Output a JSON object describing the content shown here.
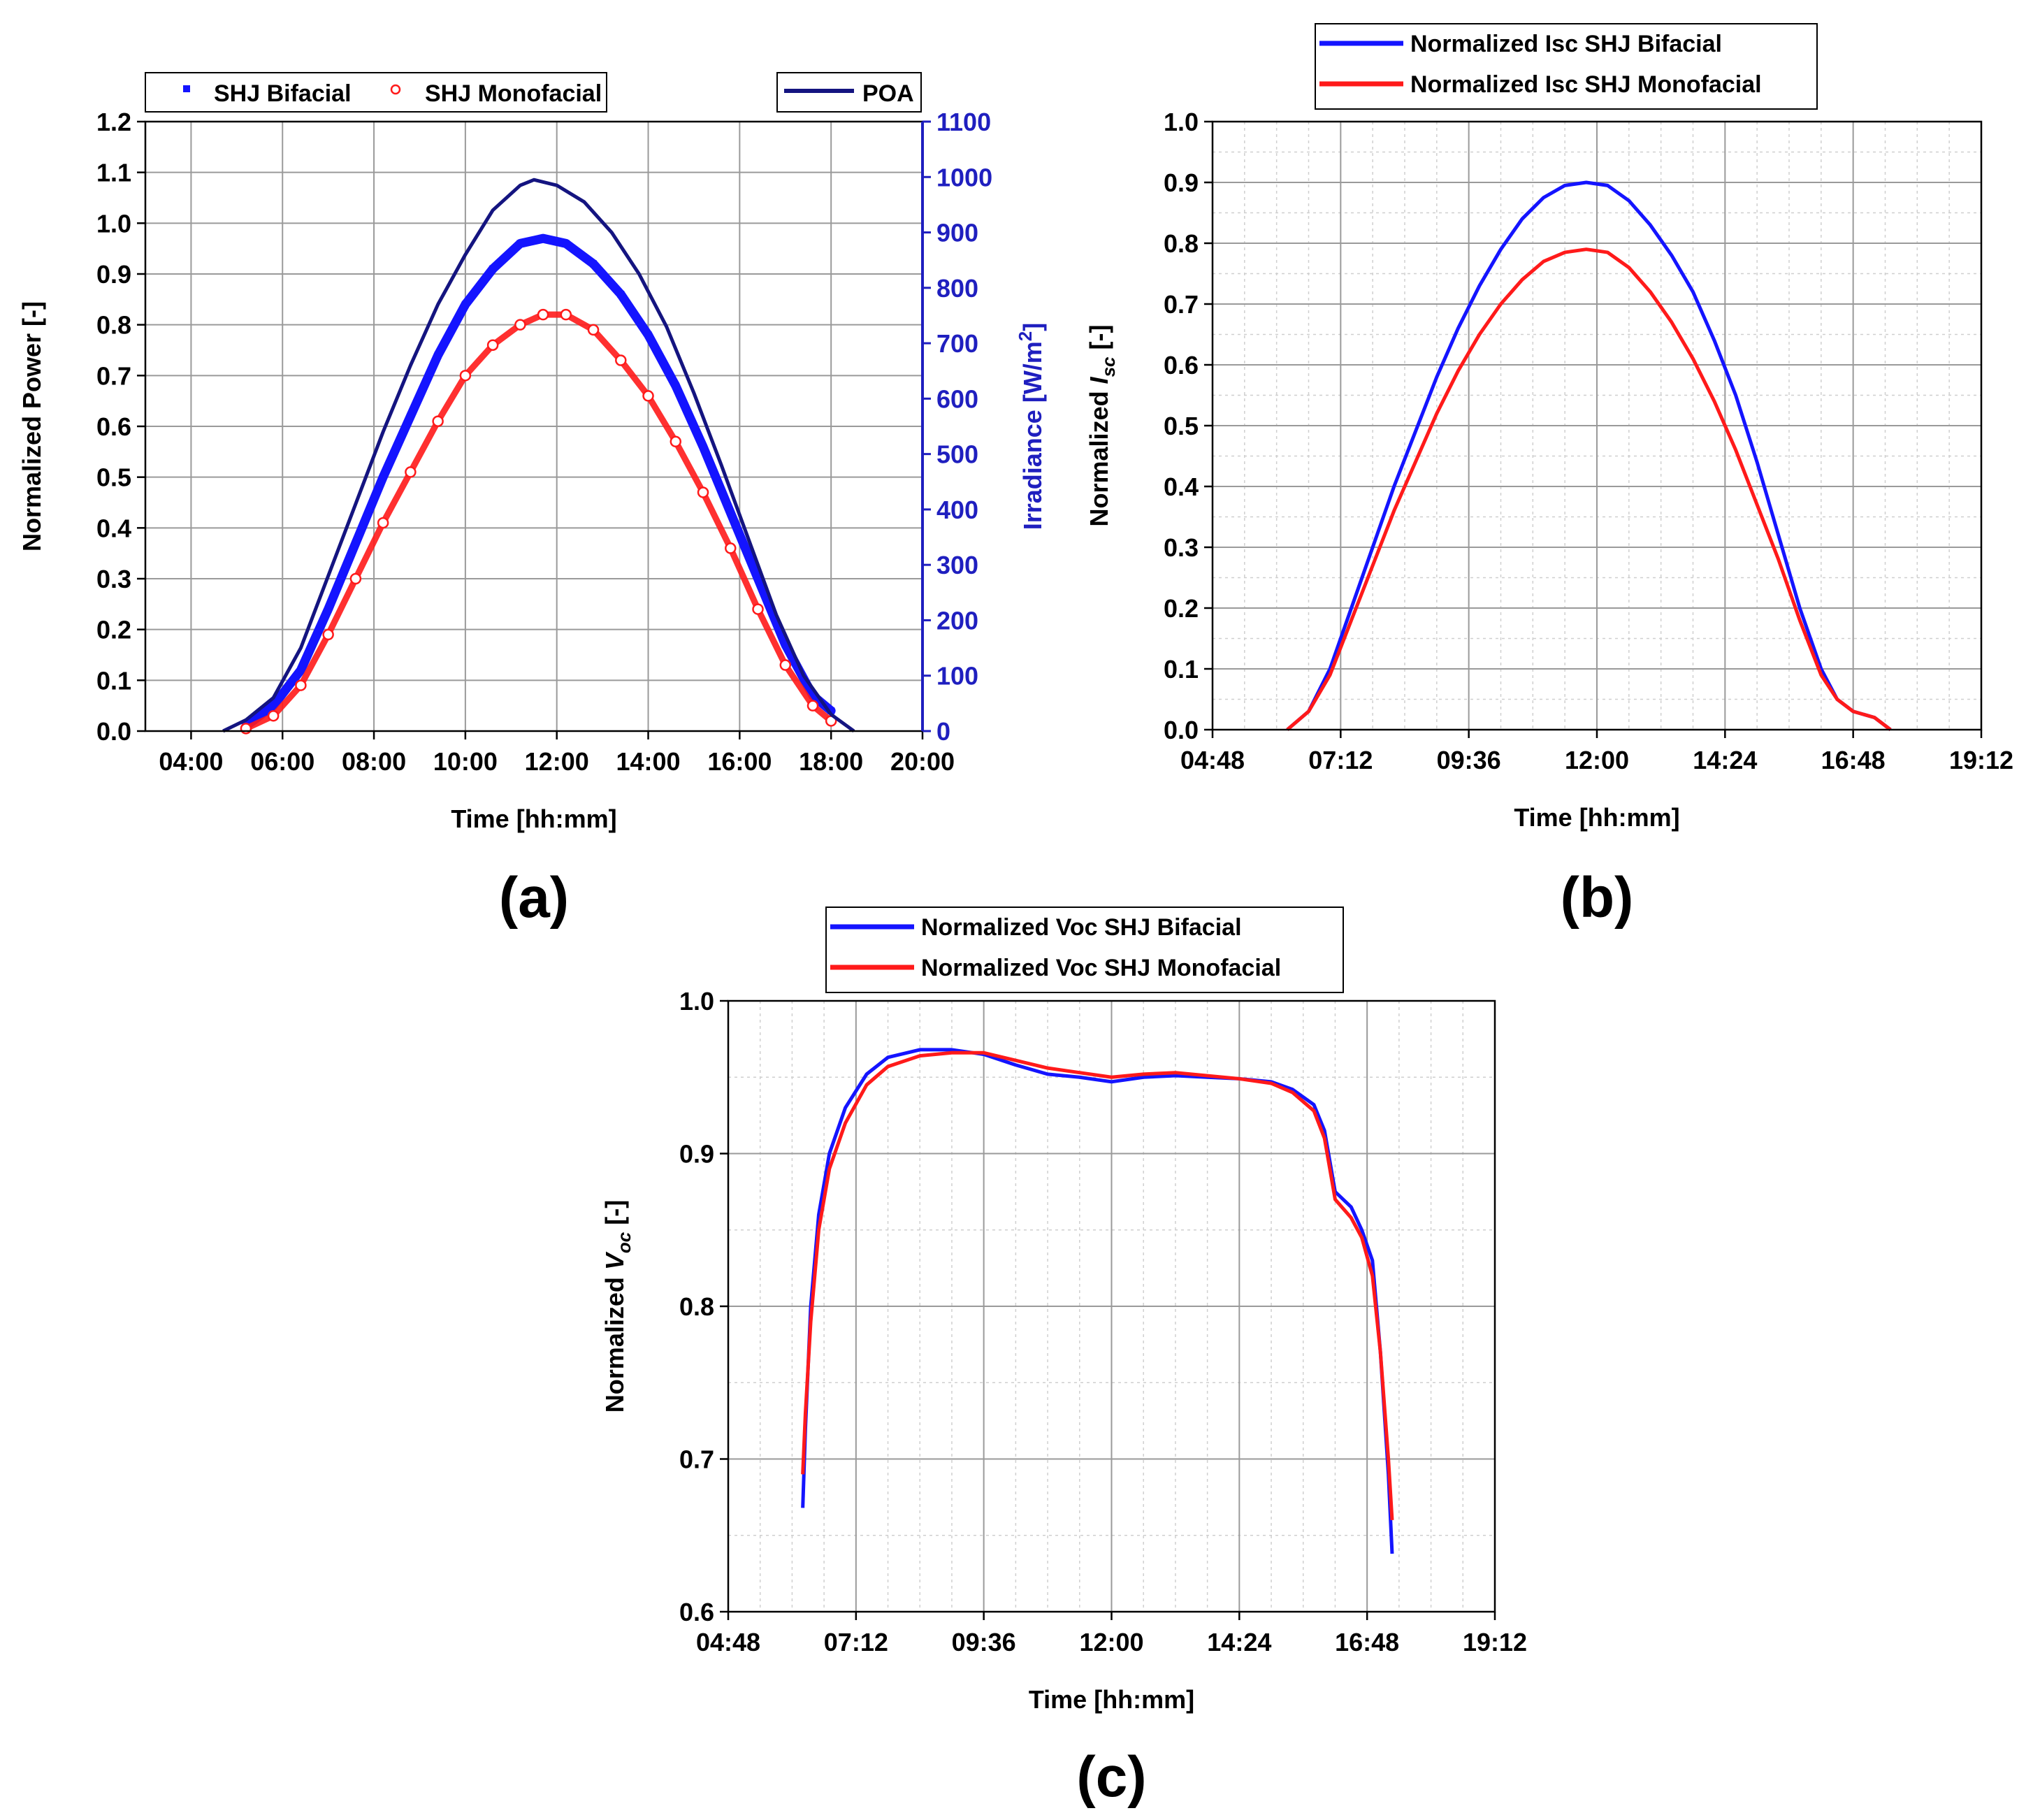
{
  "colors": {
    "blue": "#1414ff",
    "red": "#ff1a1a",
    "navy": "#141480",
    "axis_blue": "#1f1fbf"
  },
  "chart_data": [
    {
      "id": "a",
      "type": "scatter",
      "panel_label": "(a)",
      "xlabel": "Time [hh:mm]",
      "ylabel": "Normalized Power [-]",
      "y2label": "Irradiance [W/m2]",
      "x_tick_labels": [
        "04:00",
        "06:00",
        "08:00",
        "10:00",
        "12:00",
        "14:00",
        "16:00",
        "18:00",
        "20:00"
      ],
      "xlim_hours": [
        3,
        20
      ],
      "x_tick_hours": [
        4,
        6,
        8,
        10,
        12,
        14,
        16,
        18,
        20
      ],
      "ylim": [
        0,
        1.2
      ],
      "y_ticks": [
        "0.0",
        "0.1",
        "0.2",
        "0.3",
        "0.4",
        "0.5",
        "0.6",
        "0.7",
        "0.8",
        "0.9",
        "1.0",
        "1.1",
        "1.2"
      ],
      "y2lim": [
        0,
        1100
      ],
      "y2_ticks": [
        "0",
        "100",
        "200",
        "300",
        "400",
        "500",
        "600",
        "700",
        "800",
        "900",
        "1000",
        "1100"
      ],
      "legend": [
        {
          "name": "SHJ Bifacial"
        },
        {
          "name": "SHJ Monofacial"
        }
      ],
      "legend2": [
        {
          "name": "POA"
        }
      ],
      "series": [
        {
          "name": "SHJ Bifacial",
          "axis": "left",
          "color": "blue",
          "marker": "square",
          "x": [
            5.2,
            5.8,
            6.4,
            7.0,
            7.6,
            8.2,
            8.8,
            9.4,
            10.0,
            10.6,
            11.2,
            11.7,
            12.2,
            12.8,
            13.4,
            14.0,
            14.6,
            15.2,
            15.8,
            16.4,
            17.0,
            17.6,
            18.0
          ],
          "values": [
            0.01,
            0.05,
            0.12,
            0.24,
            0.37,
            0.5,
            0.62,
            0.74,
            0.84,
            0.91,
            0.96,
            0.97,
            0.96,
            0.92,
            0.86,
            0.78,
            0.68,
            0.56,
            0.43,
            0.3,
            0.17,
            0.07,
            0.04
          ]
        },
        {
          "name": "SHJ Monofacial",
          "axis": "left",
          "color": "red",
          "marker": "circle",
          "x": [
            5.2,
            5.8,
            6.4,
            7.0,
            7.6,
            8.2,
            8.8,
            9.4,
            10.0,
            10.6,
            11.2,
            11.7,
            12.2,
            12.8,
            13.4,
            14.0,
            14.6,
            15.2,
            15.8,
            16.4,
            17.0,
            17.6,
            18.0
          ],
          "values": [
            0.005,
            0.03,
            0.09,
            0.19,
            0.3,
            0.41,
            0.51,
            0.61,
            0.7,
            0.76,
            0.8,
            0.82,
            0.82,
            0.79,
            0.73,
            0.66,
            0.57,
            0.47,
            0.36,
            0.24,
            0.13,
            0.05,
            0.02
          ]
        },
        {
          "name": "POA",
          "axis": "right",
          "color": "navy",
          "marker": "line",
          "x": [
            4.7,
            5.2,
            5.8,
            6.4,
            7.0,
            7.6,
            8.2,
            8.8,
            9.4,
            10.0,
            10.6,
            11.2,
            11.5,
            12.0,
            12.6,
            13.2,
            13.8,
            14.4,
            15.0,
            15.6,
            16.2,
            16.8,
            17.4,
            18.0,
            18.5
          ],
          "values": [
            0,
            20,
            60,
            150,
            280,
            410,
            540,
            660,
            770,
            860,
            940,
            985,
            995,
            985,
            955,
            900,
            825,
            730,
            610,
            480,
            345,
            210,
            100,
            30,
            0
          ]
        }
      ]
    },
    {
      "id": "b",
      "type": "line",
      "panel_label": "(b)",
      "xlabel": "Time [hh:mm]",
      "ylabel_prefix": "Normalized ",
      "ylabel_var": "I",
      "ylabel_sub": "sc",
      "ylabel_suffix": " [-]",
      "x_tick_labels": [
        "04:48",
        "07:12",
        "09:36",
        "12:00",
        "14:24",
        "16:48",
        "19:12"
      ],
      "xlim_hours": [
        4.8,
        19.2
      ],
      "x_tick_hours": [
        4.8,
        7.2,
        9.6,
        12.0,
        14.4,
        16.8,
        19.2
      ],
      "ylim": [
        0,
        1.0
      ],
      "y_ticks": [
        "0.0",
        "0.1",
        "0.2",
        "0.3",
        "0.4",
        "0.5",
        "0.6",
        "0.7",
        "0.8",
        "0.9",
        "1.0"
      ],
      "legend": [
        {
          "name": "Normalized Isc SHJ Bifacial"
        },
        {
          "name": "Normalized Isc SHJ Monofacial"
        }
      ],
      "series": [
        {
          "name": "Normalized Isc SHJ Bifacial",
          "color": "blue",
          "x": [
            6.2,
            6.6,
            7.0,
            7.4,
            7.8,
            8.2,
            8.6,
            9.0,
            9.4,
            9.8,
            10.2,
            10.6,
            11.0,
            11.4,
            11.8,
            12.2,
            12.6,
            13.0,
            13.4,
            13.8,
            14.2,
            14.6,
            15.0,
            15.4,
            15.8,
            16.2,
            16.5,
            16.8,
            17.2,
            17.5
          ],
          "values": [
            0.0,
            0.03,
            0.1,
            0.2,
            0.3,
            0.4,
            0.49,
            0.58,
            0.66,
            0.73,
            0.79,
            0.84,
            0.875,
            0.895,
            0.9,
            0.895,
            0.87,
            0.83,
            0.78,
            0.72,
            0.64,
            0.55,
            0.44,
            0.32,
            0.2,
            0.1,
            0.05,
            0.03,
            0.02,
            0.0
          ]
        },
        {
          "name": "Normalized Isc SHJ Monofacial",
          "color": "red",
          "x": [
            6.2,
            6.6,
            7.0,
            7.4,
            7.8,
            8.2,
            8.6,
            9.0,
            9.4,
            9.8,
            10.2,
            10.6,
            11.0,
            11.4,
            11.8,
            12.2,
            12.6,
            13.0,
            13.4,
            13.8,
            14.2,
            14.6,
            15.0,
            15.4,
            15.8,
            16.2,
            16.5,
            16.8,
            17.2,
            17.5
          ],
          "values": [
            0.0,
            0.03,
            0.09,
            0.18,
            0.27,
            0.36,
            0.44,
            0.52,
            0.59,
            0.65,
            0.7,
            0.74,
            0.77,
            0.785,
            0.79,
            0.785,
            0.76,
            0.72,
            0.67,
            0.61,
            0.54,
            0.46,
            0.37,
            0.28,
            0.18,
            0.09,
            0.05,
            0.03,
            0.02,
            0.0
          ]
        }
      ]
    },
    {
      "id": "c",
      "type": "line",
      "panel_label": "(c)",
      "xlabel": "Time [hh:mm]",
      "ylabel_prefix": "Normalized ",
      "ylabel_var": "V",
      "ylabel_sub": "oc",
      "ylabel_suffix": " [-]",
      "x_tick_labels": [
        "04:48",
        "07:12",
        "09:36",
        "12:00",
        "14:24",
        "16:48",
        "19:12"
      ],
      "xlim_hours": [
        4.8,
        19.2
      ],
      "x_tick_hours": [
        4.8,
        7.2,
        9.6,
        12.0,
        14.4,
        16.8,
        19.2
      ],
      "ylim": [
        0.6,
        1.0
      ],
      "y_ticks": [
        "0.6",
        "0.7",
        "0.8",
        "0.9",
        "1.0"
      ],
      "legend": [
        {
          "name": "Normalized Voc SHJ Bifacial"
        },
        {
          "name": "Normalized Voc SHJ Monofacial"
        }
      ],
      "series": [
        {
          "name": "Normalized Voc SHJ Bifacial",
          "color": "blue",
          "x": [
            6.2,
            6.25,
            6.35,
            6.5,
            6.7,
            7.0,
            7.4,
            7.8,
            8.4,
            9.0,
            9.6,
            10.2,
            10.8,
            11.4,
            12.0,
            12.6,
            13.2,
            13.8,
            14.4,
            15.0,
            15.4,
            15.8,
            16.0,
            16.2,
            16.5,
            16.7,
            16.9,
            17.05,
            17.2,
            17.27
          ],
          "values": [
            0.668,
            0.72,
            0.8,
            0.86,
            0.9,
            0.93,
            0.952,
            0.963,
            0.968,
            0.968,
            0.965,
            0.958,
            0.952,
            0.95,
            0.947,
            0.95,
            0.951,
            0.95,
            0.949,
            0.947,
            0.942,
            0.932,
            0.915,
            0.875,
            0.865,
            0.85,
            0.83,
            0.77,
            0.69,
            0.638
          ]
        },
        {
          "name": "Normalized Voc SHJ Monofacial",
          "color": "red",
          "x": [
            6.2,
            6.25,
            6.35,
            6.5,
            6.7,
            7.0,
            7.4,
            7.8,
            8.4,
            9.0,
            9.6,
            10.2,
            10.8,
            11.4,
            12.0,
            12.6,
            13.2,
            13.8,
            14.4,
            15.0,
            15.4,
            15.8,
            16.0,
            16.2,
            16.5,
            16.7,
            16.9,
            17.05,
            17.2,
            17.27
          ],
          "values": [
            0.69,
            0.73,
            0.79,
            0.85,
            0.89,
            0.92,
            0.945,
            0.957,
            0.964,
            0.966,
            0.966,
            0.961,
            0.956,
            0.953,
            0.95,
            0.952,
            0.953,
            0.951,
            0.949,
            0.946,
            0.94,
            0.928,
            0.91,
            0.87,
            0.858,
            0.845,
            0.82,
            0.77,
            0.7,
            0.66
          ]
        }
      ]
    }
  ]
}
